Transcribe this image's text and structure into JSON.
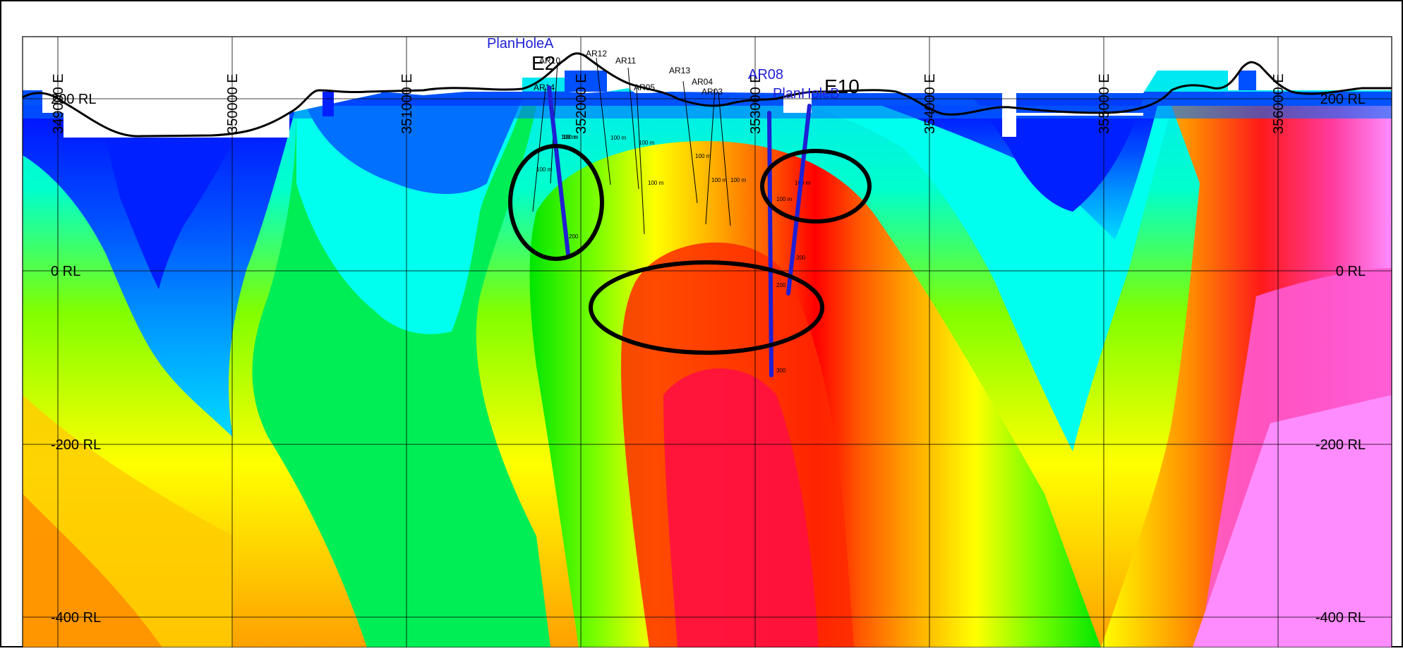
{
  "section": {
    "easting_labels": [
      "349000 E",
      "350000 E",
      "351000 E",
      "352000 E",
      "353000 E",
      "354000 E",
      "355000 E",
      "356000 E"
    ],
    "rl_labels": [
      "200 RL",
      "0 RL",
      "-200 RL",
      "-400 RL"
    ],
    "targets": [
      "E2",
      "E10"
    ],
    "existing_holes": [
      "AR14",
      "AR10",
      "AR12",
      "AR11",
      "AR05",
      "AR13",
      "AR04",
      "AR03"
    ],
    "planned_holes": [
      "PlanHoleA",
      "PlanHoleB",
      "AR08"
    ],
    "depth_labels": [
      "100 m",
      "200",
      "300"
    ],
    "colors": {
      "low": "#0000ff",
      "mid": "#00ff00",
      "high": "#ff0000",
      "very_high": "#ff88ff",
      "plan_hole": "#1f1fd6",
      "outline": "#000000"
    }
  }
}
